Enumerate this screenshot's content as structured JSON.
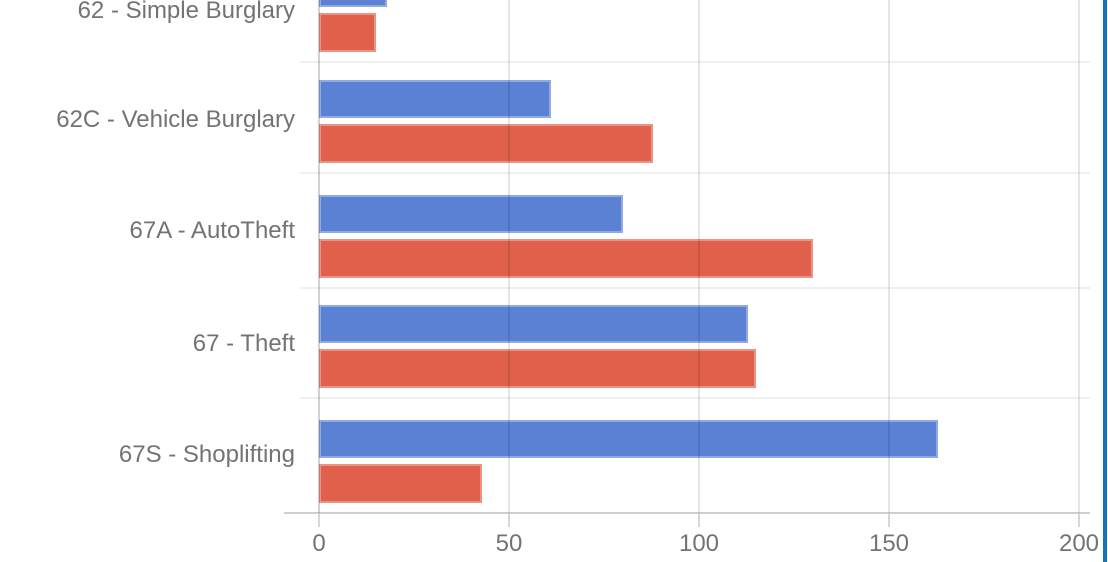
{
  "window": {
    "right_edge_color": "#1176bc"
  },
  "chart_data": {
    "type": "bar",
    "orientation": "horizontal",
    "categories": [
      "62 - Simple Burglary",
      "62C - Vehicle Burglary",
      "67A - AutoTheft",
      "67 - Theft",
      "67S - Shoplifting"
    ],
    "series": [
      {
        "name": "blue",
        "color": "#5b81d5",
        "values": [
          18,
          61,
          80,
          113,
          163
        ]
      },
      {
        "name": "red",
        "color": "#e0604b",
        "values": [
          15,
          88,
          130,
          115,
          43
        ]
      }
    ],
    "x_axis": {
      "ticks": [
        0,
        50,
        100,
        150,
        200
      ],
      "range": [
        0,
        200
      ]
    },
    "text_color": "#737373",
    "grid": true,
    "legend": "none",
    "top_cropped": true
  }
}
